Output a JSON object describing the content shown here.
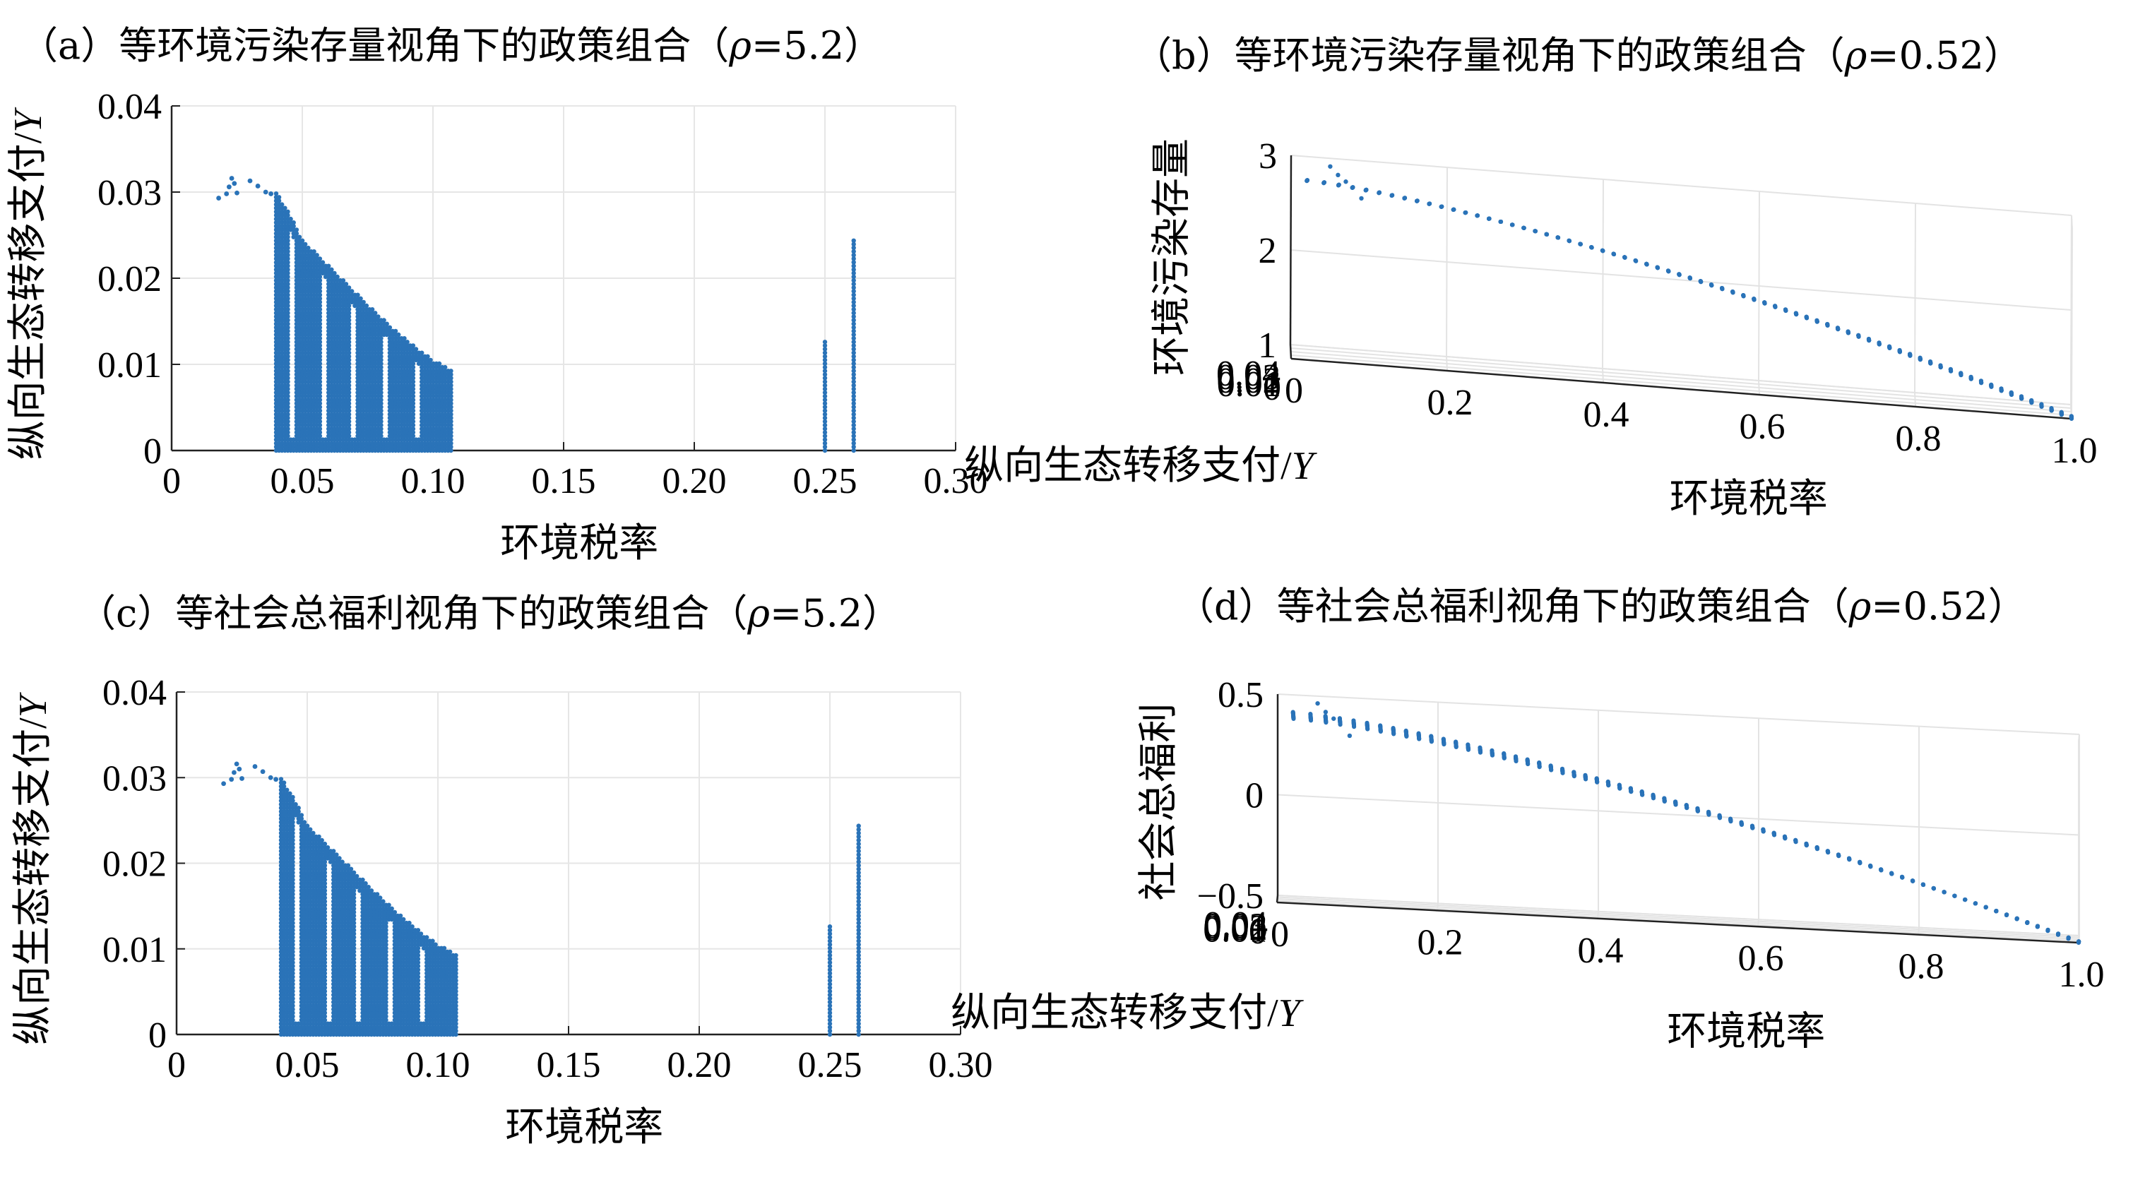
{
  "chart_data": [
    {
      "id": "a",
      "type": "scatter",
      "title": "（a）等环境污染存量视角下的政策组合（ρ=5.2）",
      "title_parts": {
        "prefix": "（a）等环境污染存量视角下的政策组合（",
        "rho": "ρ",
        "suffix": "=5.2）"
      },
      "xlabel": "环境税率",
      "ylabel": "纵向生态转移支付/Y",
      "xlim": [
        0,
        0.3
      ],
      "ylim": [
        0,
        0.04
      ],
      "xticks": [
        "0",
        "0.05",
        "0.10",
        "0.15",
        "0.20",
        "0.25",
        "0.30"
      ],
      "yticks": [
        "0",
        "0.01",
        "0.02",
        "0.03",
        "0.04"
      ],
      "grid": true,
      "color": "#2a73b8",
      "region": {
        "boundary_x": [
          0.04,
          0.042,
          0.045,
          0.05,
          0.06,
          0.07,
          0.08,
          0.09,
          0.1,
          0.105,
          0.108
        ],
        "boundary_ymax": [
          0.03,
          0.029,
          0.0275,
          0.0245,
          0.0215,
          0.0185,
          0.0155,
          0.0128,
          0.0105,
          0.0098,
          0.0092
        ],
        "ymin": 0.0,
        "gaps_x": [
          0.046,
          0.058,
          0.07,
          0.082,
          0.094
        ]
      },
      "curve_points": {
        "x": [
          0.018,
          0.021,
          0.022,
          0.023,
          0.024,
          0.025,
          0.03,
          0.033,
          0.036,
          0.038
        ],
        "y": [
          0.0293,
          0.0298,
          0.0306,
          0.0316,
          0.031,
          0.0299,
          0.0313,
          0.0307,
          0.03,
          0.0298
        ]
      },
      "vertical_lines": [
        {
          "x": 0.25,
          "ymax": 0.013
        },
        {
          "x": 0.261,
          "ymax": 0.0245
        }
      ]
    },
    {
      "id": "b",
      "type": "scatter3d",
      "title": "（b）等环境污染存量视角下的政策组合（ρ=0.52）",
      "title_parts": {
        "prefix": "（b）等环境污染存量视角下的政策组合（",
        "rho": "ρ",
        "suffix": "=0.52）"
      },
      "xlabel": "环境税率",
      "ylabel": "纵向生态转移支付/Y",
      "zlabel": "环境污染存量",
      "xlim": [
        0,
        1.0
      ],
      "ylim": [
        0,
        0.04
      ],
      "zlim": [
        1,
        3
      ],
      "xticks": [
        "0",
        "0.2",
        "0.4",
        "0.6",
        "0.8",
        "1.0"
      ],
      "yticks": [
        "0",
        "0.01",
        "0.02",
        "0.03",
        "0.04"
      ],
      "zticks": [
        "1",
        "2",
        "3"
      ],
      "grid": true,
      "color": "#2a73b8",
      "surface": {
        "x_range": [
          0.02,
          1.0
        ],
        "y_range": [
          0,
          0.03
        ],
        "z_at_x0": 2.9,
        "z_at_x1": 1.0
      }
    },
    {
      "id": "c",
      "type": "scatter",
      "title": "（c）等社会总福利视角下的政策组合（ρ=5.2）",
      "title_parts": {
        "prefix": "（c）等社会总福利视角下的政策组合（",
        "rho": "ρ",
        "suffix": "=5.2）"
      },
      "xlabel": "环境税率",
      "ylabel": "纵向生态转移支付/Y",
      "xlim": [
        0,
        0.3
      ],
      "ylim": [
        0,
        0.04
      ],
      "xticks": [
        "0",
        "0.05",
        "0.10",
        "0.15",
        "0.20",
        "0.25",
        "0.30"
      ],
      "yticks": [
        "0",
        "0.01",
        "0.02",
        "0.03",
        "0.04"
      ],
      "grid": true,
      "color": "#2a73b8",
      "region": {
        "boundary_x": [
          0.04,
          0.042,
          0.045,
          0.05,
          0.06,
          0.07,
          0.08,
          0.09,
          0.1,
          0.105,
          0.108
        ],
        "boundary_ymax": [
          0.03,
          0.029,
          0.0275,
          0.0245,
          0.0215,
          0.0185,
          0.0155,
          0.0128,
          0.0105,
          0.0098,
          0.0092
        ],
        "ymin": 0.0,
        "gaps_x": [
          0.046,
          0.058,
          0.07,
          0.082,
          0.094
        ]
      },
      "curve_points": {
        "x": [
          0.018,
          0.021,
          0.022,
          0.023,
          0.024,
          0.025,
          0.03,
          0.033,
          0.036,
          0.038
        ],
        "y": [
          0.0293,
          0.0298,
          0.0306,
          0.0316,
          0.031,
          0.0299,
          0.0313,
          0.0307,
          0.03,
          0.0298
        ]
      },
      "vertical_lines": [
        {
          "x": 0.25,
          "ymax": 0.013
        },
        {
          "x": 0.261,
          "ymax": 0.0245
        }
      ]
    },
    {
      "id": "d",
      "type": "scatter3d",
      "title": "（d）等社会总福利视角下的政策组合（ρ=0.52）",
      "title_parts": {
        "prefix": "（d）等社会总福利视角下的政策组合（",
        "rho": "ρ",
        "suffix": "=0.52）"
      },
      "xlabel": "环境税率",
      "ylabel": "纵向生态转移支付/Y",
      "zlabel": "社会总福利",
      "xlim": [
        0,
        1.0
      ],
      "ylim": [
        0,
        0.04
      ],
      "zlim": [
        -0.5,
        0.5
      ],
      "xticks": [
        "0",
        "0.2",
        "0.4",
        "0.6",
        "0.8",
        "1.0"
      ],
      "yticks": [
        "0",
        "0.01",
        "0.02",
        "0.03",
        "0.04"
      ],
      "zticks": [
        "−0.5",
        "0",
        "0.5"
      ],
      "grid": true,
      "color": "#2a73b8",
      "surface": {
        "x_range": [
          0.02,
          1.0
        ],
        "y_range": [
          0,
          0.03
        ],
        "z_at_x0": 0.45,
        "z_at_x1": -0.5
      }
    }
  ]
}
